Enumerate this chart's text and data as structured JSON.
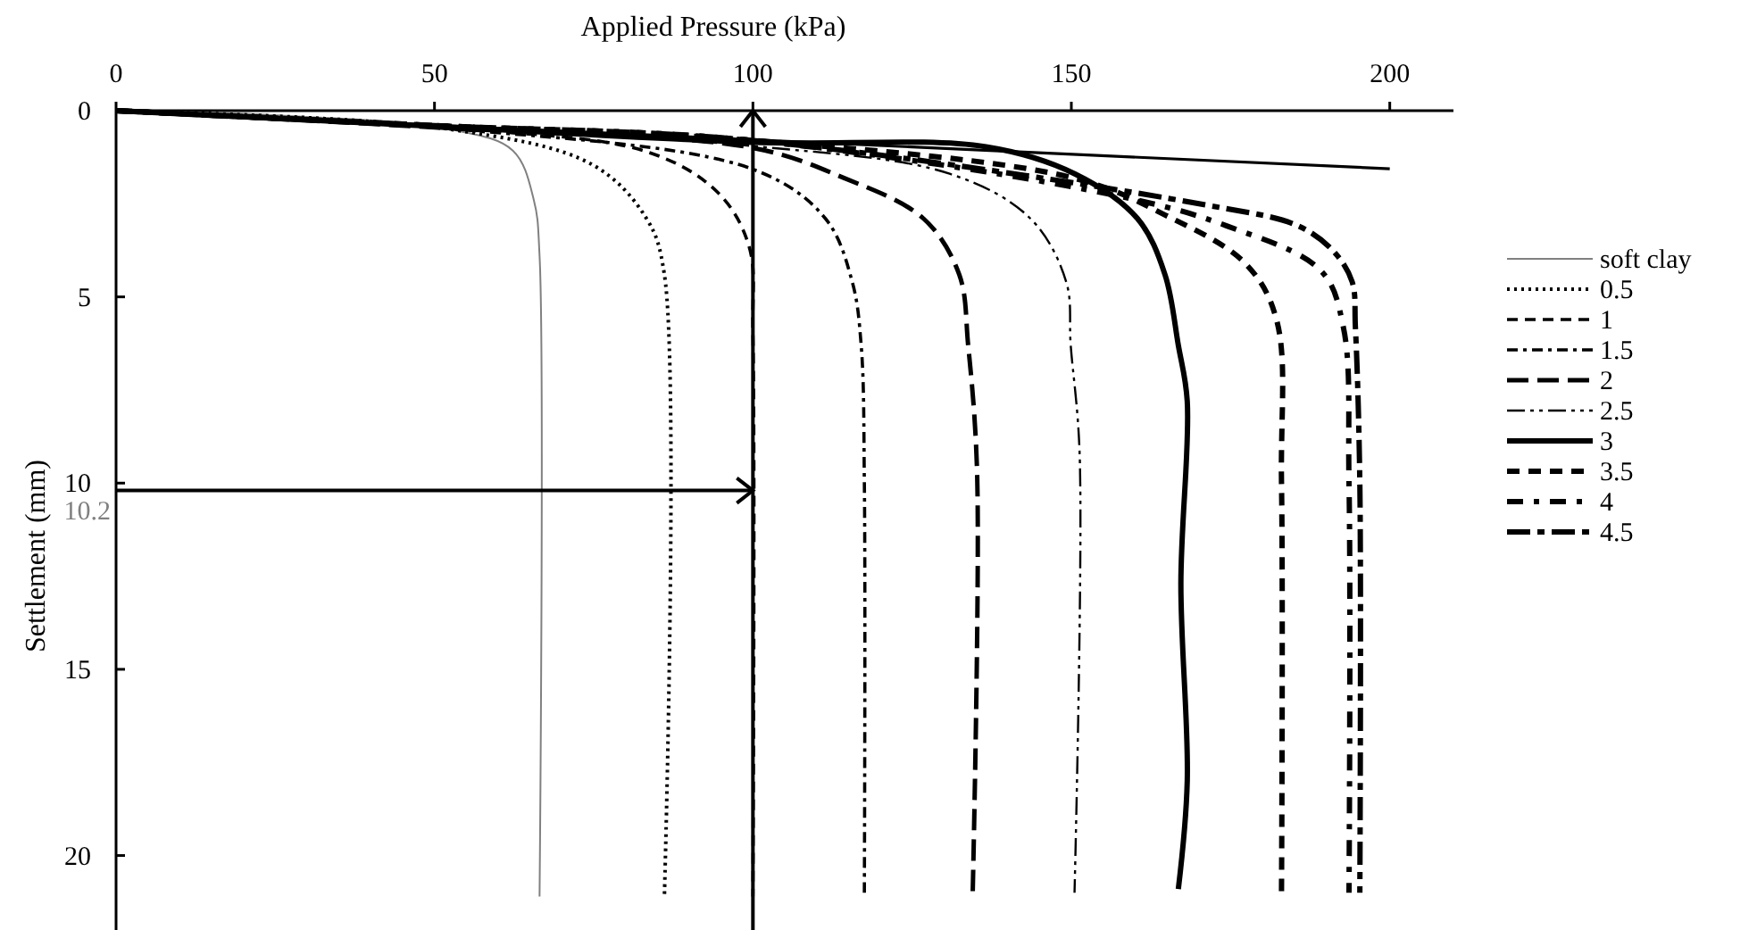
{
  "chart_data": {
    "type": "line",
    "xlabel": "Applied Pressure (kPa)",
    "ylabel": "Settlement (mm)",
    "xlim": [
      0,
      210
    ],
    "xticks": [
      0,
      50,
      100,
      150,
      200
    ],
    "ylim": [
      22,
      0
    ],
    "yticks": [
      0,
      5,
      10,
      15,
      20
    ],
    "grid": false,
    "legend": "right",
    "marker": "none",
    "ref_lines": [
      {
        "axis": "x",
        "value": 100
      },
      {
        "axis": "y",
        "value": 10.2,
        "label": "10.2"
      }
    ],
    "series": [
      {
        "name": "soft clay",
        "color": "#808080",
        "line_style": "solid",
        "x": [
          0,
          24.4,
          52.5,
          62.3,
          65.6,
          66.5,
          66.5
        ],
        "values": [
          0,
          0.12,
          0.5,
          1.07,
          2.4,
          3.9,
          21.1
        ]
      },
      {
        "name": "0.5",
        "color": "#000000",
        "line_style": "dotted",
        "x": [
          0,
          52.5,
          74.9,
          83.3,
          86.1,
          86.1
        ],
        "values": [
          0,
          0.5,
          1.46,
          2.9,
          4.4,
          21.1
        ]
      },
      {
        "name": "1",
        "color": "#000000",
        "line_style": "dashed",
        "x": [
          0,
          50,
          83.3,
          94.5,
          99.4,
          100,
          100
        ],
        "values": [
          0,
          0.45,
          1.1,
          2.2,
          3.65,
          6,
          21.1
        ]
      },
      {
        "name": "1.5",
        "color": "#000000",
        "line_style": "dashed",
        "x": [
          0,
          50,
          100.1,
          111.4,
          115.6,
          117,
          117.5,
          117.5
        ],
        "values": [
          0,
          0.45,
          1.58,
          2.9,
          4.6,
          6.3,
          10,
          21
        ]
      },
      {
        "name": "2",
        "color": "#000000",
        "line_style": "dashed",
        "x": [
          0,
          50,
          100,
          114.2,
          126.8,
          132.4,
          133.8,
          135.2,
          134.5
        ],
        "values": [
          0,
          0.45,
          1.0,
          1.8,
          2.9,
          4.4,
          6.3,
          9.7,
          21.1
        ]
      },
      {
        "name": "2.5",
        "color": "#000000",
        "line_style": "dashed",
        "x": [
          0,
          50,
          100,
          131,
          143.6,
          149.2,
          149.9,
          151.3,
          150.5
        ],
        "values": [
          0,
          0.45,
          0.95,
          1.7,
          2.9,
          4.6,
          6.3,
          9.2,
          21
        ]
      },
      {
        "name": "3",
        "color": "#000000",
        "line_style": "solid",
        "x": [
          0,
          50,
          100,
          136.6,
          150.6,
          160.4,
          164.7,
          166.8,
          168.2,
          167.2,
          168.2,
          166.8
        ],
        "values": [
          0,
          0.42,
          0.85,
          0.97,
          1.7,
          2.9,
          4.4,
          6.3,
          7.8,
          12.7,
          18,
          20.9
        ]
      },
      {
        "name": "3.5",
        "color": "#000000",
        "line_style": "dashed",
        "x": [
          0,
          50,
          100,
          150.6,
          164.7,
          177.3,
          182.2,
          183,
          183
        ],
        "values": [
          0,
          0.4,
          0.8,
          1.82,
          2.8,
          4.1,
          5.6,
          10,
          21
        ]
      },
      {
        "name": "4",
        "color": "#000000",
        "line_style": "dashed",
        "x": [
          0,
          50,
          100,
          157.6,
          174.5,
          189.2,
          192.7,
          193.6,
          193.6
        ],
        "values": [
          0,
          0.4,
          0.8,
          2.3,
          3.1,
          4.3,
          5.8,
          10,
          21
        ]
      },
      {
        "name": "4.5",
        "color": "#000000",
        "line_style": "dashed",
        "x": [
          0,
          50,
          100,
          171.7,
          185.7,
          191.3,
          194.1,
          194.6,
          195.3,
          195.3
        ],
        "values": [
          0,
          0.4,
          0.8,
          2.55,
          3.1,
          3.8,
          4.6,
          5.8,
          10,
          21
        ]
      },
      {
        "color": "#000000",
        "line_style": "solid",
        "x": [
          0,
          200
        ],
        "values": [
          0,
          1.56
        ]
      }
    ]
  }
}
